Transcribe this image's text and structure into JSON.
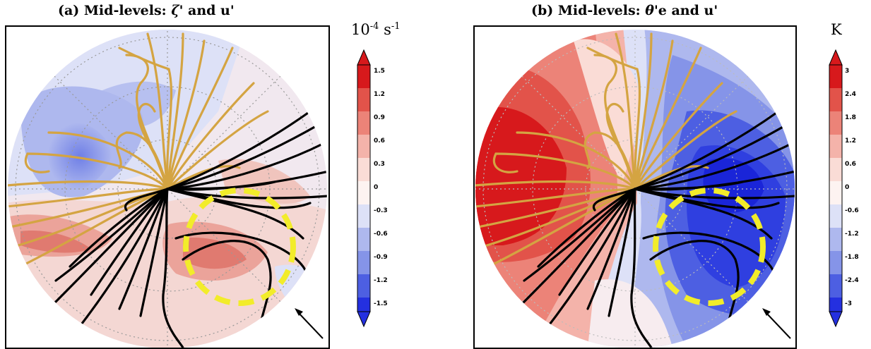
{
  "panels": [
    {
      "id": "a",
      "title_prefix": "(a)  Mid-levels: ",
      "title_symbol": "ζ'",
      "title_suffix": " and u'",
      "colorbar": {
        "unit_base": "10",
        "unit_exp1": "-4",
        "unit_mid": " s",
        "unit_exp2": "-1",
        "ticks": [
          "1.5",
          "1.2",
          "0.9",
          "0.6",
          "0.3",
          "0",
          "-0.3",
          "-0.6",
          "-0.9",
          "-1.2",
          "-1.5"
        ]
      }
    },
    {
      "id": "b",
      "title_prefix": "(b)  Mid-levels: ",
      "title_symbol": "θ'",
      "title_suffix": "e and u'",
      "colorbar": {
        "unit_base": "K",
        "ticks": [
          "3",
          "2.4",
          "1.8",
          "1.2",
          "0.6",
          "0",
          "-0.6",
          "-1.2",
          "-1.8",
          "-2.4",
          "-3"
        ]
      }
    }
  ],
  "chart_data": [
    {
      "type": "heatmap",
      "title": "(a) Mid-levels: ζ' and u'",
      "projection": "polar stereographic",
      "colorbar_label": "10^-4 s^-1",
      "colorbar_ticks": [
        1.5,
        1.2,
        0.9,
        0.6,
        0.3,
        0,
        -0.3,
        -0.6,
        -0.9,
        -1.2,
        -1.5
      ],
      "colorscale": "blue-white-red diverging",
      "overlays": [
        "gold streamlines",
        "black streamlines",
        "yellow dashed circle",
        "arrow"
      ]
    },
    {
      "type": "heatmap",
      "title": "(b) Mid-levels: θ'e and u'",
      "projection": "polar stereographic",
      "colorbar_label": "K",
      "colorbar_ticks": [
        3,
        2.4,
        1.8,
        1.2,
        0.6,
        0,
        -0.6,
        -1.2,
        -1.8,
        -2.4,
        -3
      ],
      "colorscale": "blue-white-red diverging",
      "overlays": [
        "gold streamlines",
        "black streamlines",
        "yellow dashed circle",
        "arrow"
      ]
    }
  ],
  "colors": {
    "red_strong": "#d7191c",
    "red_mid": "#e86a5f",
    "red_light": "#f4b3aa",
    "red_pale": "#fadcd6",
    "blue_pale": "#dde1f7",
    "blue_light": "#aeb8ee",
    "blue_mid": "#6f7fe6",
    "blue_strong": "#2430e0",
    "streamline_gold": "#d4a442",
    "streamline_black": "#000000",
    "circle_yellow": "#f2ec2a"
  }
}
